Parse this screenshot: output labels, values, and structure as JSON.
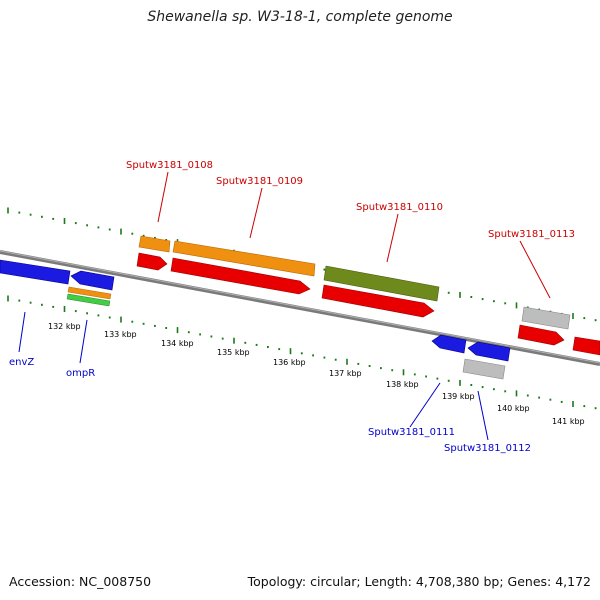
{
  "title": "Shewanella sp. W3-18-1, complete genome",
  "footer": {
    "accession": "Accession: NC_008750",
    "topology": "Topology: circular; Length: 4,708,380 bp; Genes: 4,172"
  },
  "colors": {
    "red": "#e80000",
    "orange": "#f09010",
    "blue": "#1a1ae0",
    "olive": "#6e8a1c",
    "gray": "#bbbbbb",
    "green": "#44cc44",
    "tick": "#1a7a1a",
    "backbone": "#777777",
    "label_red": "#cc0000",
    "label_blue": "#0000cc"
  },
  "scale_labels": [
    "132 kbp",
    "133 kbp",
    "134 kbp",
    "135 kbp",
    "136 kbp",
    "137 kbp",
    "138 kbp",
    "139 kbp",
    "140 kbp",
    "141 kbp"
  ],
  "gene_labels_top": [
    "Sputw3181_0108",
    "Sputw3181_0109",
    "Sputw3181_0110",
    "Sputw3181_0113"
  ],
  "gene_labels_bottom": [
    "envZ",
    "ompR",
    "Sputw3181_0111",
    "Sputw3181_0112"
  ]
}
